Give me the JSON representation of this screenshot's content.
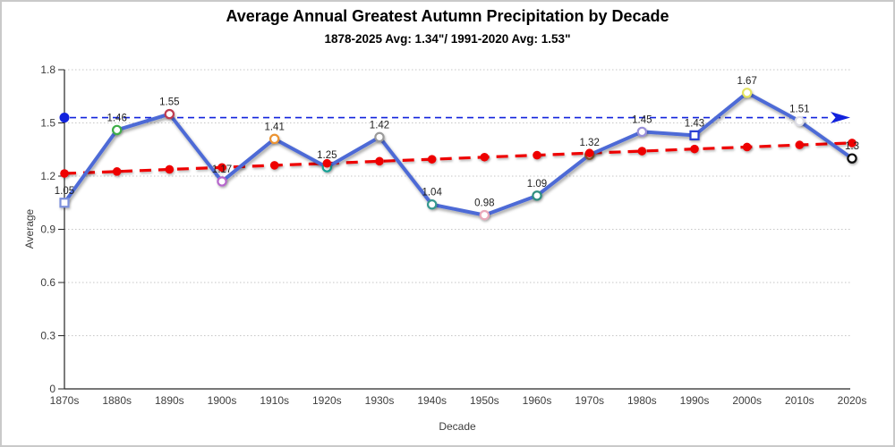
{
  "chart_data": {
    "type": "line",
    "title": "Average Annual Greatest Autumn Precipitation by Decade",
    "subtitle": "1878-2025 Avg: 1.34\"/ 1991-2020 Avg: 1.53\"",
    "xlabel": "Decade",
    "ylabel": "Average",
    "ylim": [
      0,
      1.8
    ],
    "yticks": [
      0,
      0.3,
      0.6,
      0.9,
      1.2,
      1.5,
      1.8
    ],
    "ytick_labels": [
      "0",
      "0.3",
      "0.6",
      "0.9",
      "1.2",
      "1.5",
      "1.8"
    ],
    "grid": "horizontal dotted gridlines at each y tick",
    "legend": "none",
    "categories": [
      "1870s",
      "1880s",
      "1890s",
      "1900s",
      "1910s",
      "1920s",
      "1930s",
      "1940s",
      "1950s",
      "1960s",
      "1970s",
      "1980s",
      "1990s",
      "2000s",
      "2010s",
      "2020s"
    ],
    "series": [
      {
        "name": "decade-average",
        "type": "line",
        "color": "#4d6bd6",
        "values": [
          1.05,
          1.46,
          1.55,
          1.17,
          1.41,
          1.25,
          1.42,
          1.04,
          0.98,
          1.09,
          1.32,
          1.45,
          1.43,
          1.67,
          1.51,
          1.3
        ],
        "point_labels": [
          "1.05",
          "1.46",
          "1.55",
          "1.17",
          "1.41",
          "1.25",
          "1.42",
          "1.04",
          "0.98",
          "1.09",
          "1.32",
          "1.45",
          "1.43",
          "1.67",
          "1.51",
          "1.3"
        ],
        "marker_fill": "#ffffff",
        "marker_colors": [
          "#7c90dc",
          "#3fae4a",
          "#bf3a50",
          "#b666cc",
          "#eb9331",
          "#19a296",
          "#9a9a9a",
          "#35988f",
          "#e9a8ba",
          "#2f8f80",
          "#8a5a30",
          "#988fd9",
          "#2a3fd4",
          "#e3e35e",
          "#dcdce4",
          "#111111"
        ],
        "marker_shapes": [
          "square",
          "circle",
          "circle",
          "circle",
          "circle",
          "circle",
          "circle",
          "circle",
          "circle",
          "circle",
          "circle",
          "circle",
          "square",
          "circle",
          "circle",
          "circle"
        ]
      },
      {
        "name": "linear-trend",
        "type": "dashed-line-with-dots",
        "color": "#ee0000",
        "values": [
          1.215,
          1.226,
          1.238,
          1.249,
          1.261,
          1.272,
          1.284,
          1.295,
          1.307,
          1.318,
          1.33,
          1.341,
          1.353,
          1.364,
          1.376,
          1.387
        ]
      },
      {
        "name": "avg-1991-2020-reference",
        "type": "dashed-horizontal-line-with-arrow",
        "color": "#1122dd",
        "value": 1.53
      }
    ],
    "label_color": "#1f1f1f",
    "tick_color": "#3d3d3d",
    "gridline_color": "#c6c6c6",
    "axis_color": "#262626"
  }
}
